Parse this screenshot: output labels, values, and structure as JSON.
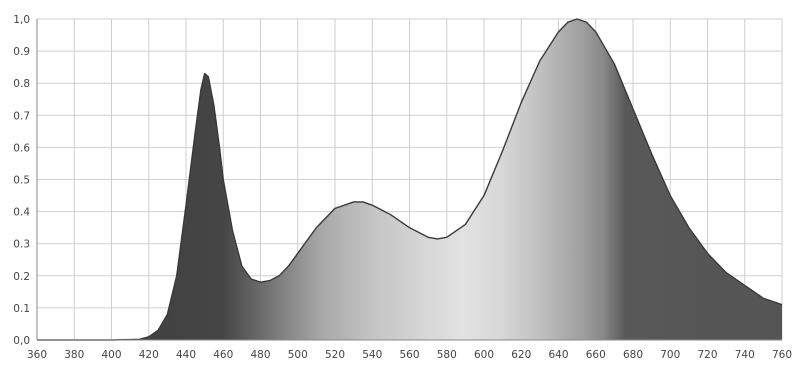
{
  "chart_data": {
    "type": "area",
    "title": "",
    "xlabel": "",
    "ylabel": "",
    "x_ticks": [
      "360",
      "380",
      "400",
      "420",
      "440",
      "460",
      "480",
      "500",
      "520",
      "540",
      "560",
      "580",
      "600",
      "620",
      "640",
      "660",
      "680",
      "700",
      "720",
      "740",
      "760"
    ],
    "y_ticks": [
      "0,0",
      "0.1",
      "0.2",
      "0.3",
      "0.4",
      "0.5",
      "0.6",
      "0.7",
      "0.8",
      "0.9",
      "1,0"
    ],
    "xlim": [
      360,
      760
    ],
    "ylim": [
      0,
      1.0
    ],
    "grid": true,
    "legend": "none",
    "fill_style": "grayscale visible-spectrum gradient",
    "colors": {
      "line": "#3a3a3a",
      "grid": "#cfcfcf",
      "axis": "#8a8a8a",
      "tick_text": "#444444"
    },
    "series": [
      {
        "x": [
          360,
          400,
          415,
          420,
          425,
          430,
          435,
          440,
          445,
          448,
          450,
          452,
          455,
          458,
          460,
          465,
          470,
          475,
          480,
          485,
          490,
          495,
          500,
          510,
          520,
          530,
          535,
          540,
          550,
          560,
          570,
          575,
          580,
          590,
          600,
          610,
          620,
          630,
          640,
          645,
          650,
          655,
          660,
          670,
          680,
          690,
          700,
          710,
          720,
          730,
          740,
          750,
          760
        ],
        "y": [
          0.0,
          0.0,
          0.002,
          0.01,
          0.03,
          0.08,
          0.2,
          0.42,
          0.65,
          0.78,
          0.83,
          0.82,
          0.73,
          0.6,
          0.5,
          0.34,
          0.23,
          0.19,
          0.18,
          0.185,
          0.2,
          0.23,
          0.27,
          0.35,
          0.41,
          0.43,
          0.43,
          0.42,
          0.39,
          0.35,
          0.32,
          0.315,
          0.32,
          0.36,
          0.45,
          0.59,
          0.74,
          0.87,
          0.96,
          0.99,
          1.0,
          0.99,
          0.96,
          0.86,
          0.72,
          0.58,
          0.45,
          0.35,
          0.27,
          0.21,
          0.17,
          0.13,
          0.11
        ]
      }
    ]
  }
}
